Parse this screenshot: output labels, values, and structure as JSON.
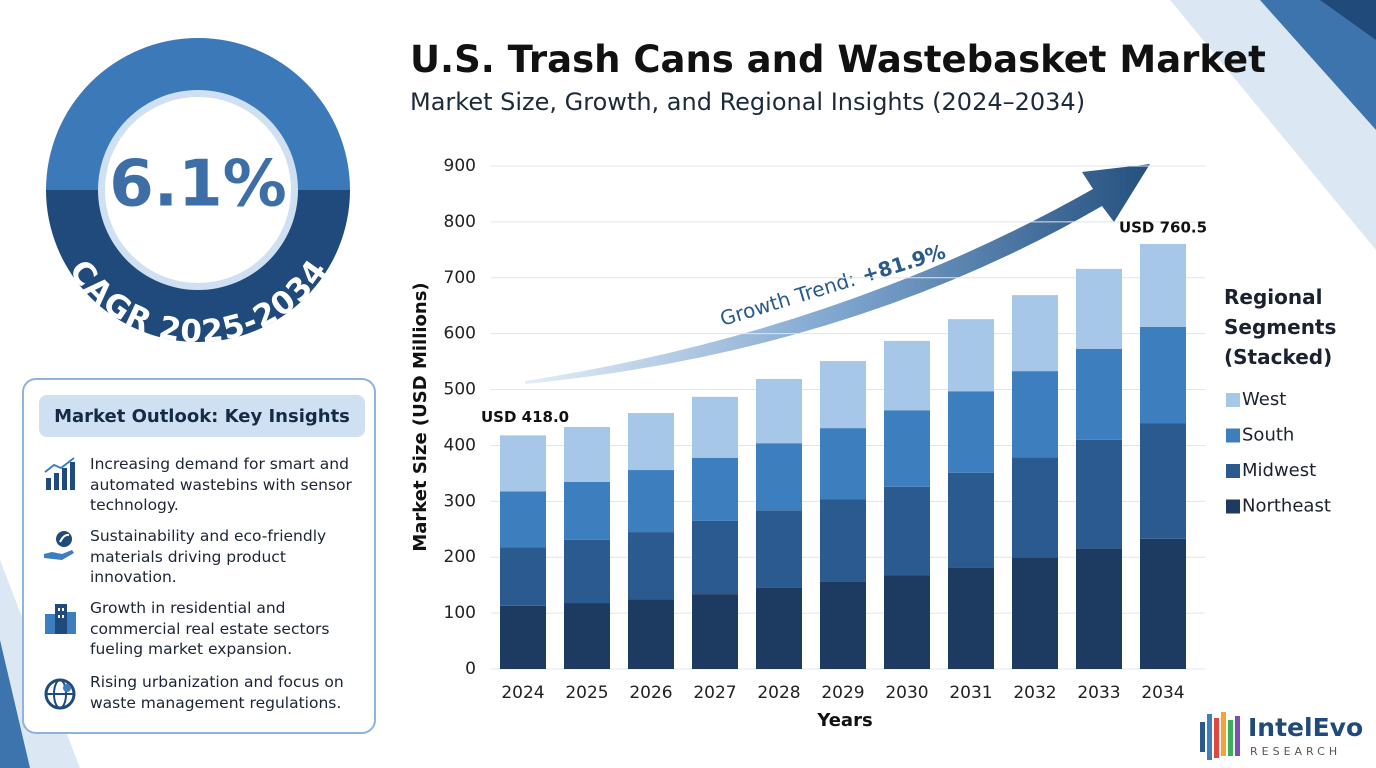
{
  "cagr": {
    "value": "6.1%",
    "label": "CAGR 2025-2034"
  },
  "insights": {
    "title": "Market Outlook: Key Insights",
    "items": [
      "Increasing demand for smart and automated wastebins with sensor technology.",
      "Sustainability and eco-friendly materials driving product innovation.",
      "Growth in residential and commercial real estate sectors fueling market expansion.",
      "Rising urbanization and focus on waste management regulations."
    ]
  },
  "logo": {
    "name": "IntelEvo",
    "tagline": "RESEARCH"
  },
  "chart_data": {
    "type": "bar",
    "stacked": true,
    "title": "U.S. Trash Cans and Wastebasket Market",
    "subtitle": "Market Size, Growth, and Regional Insights (2024–2034)",
    "x_label": "Years",
    "y_label": "Market Size (USD Millions)",
    "categories": [
      "2024",
      "2025",
      "2026",
      "2027",
      "2028",
      "2029",
      "2030",
      "2031",
      "2032",
      "2033",
      "2034"
    ],
    "series": [
      {
        "name": "Northeast",
        "color": "#1d3a60",
        "values": [
          113,
          118,
          125,
          134,
          145,
          157,
          168,
          182,
          200,
          216,
          233
        ]
      },
      {
        "name": "Midwest",
        "color": "#2b5b8e",
        "values": [
          105,
          113,
          120,
          131,
          139,
          147,
          158,
          169,
          179,
          194,
          207
        ]
      },
      {
        "name": "South",
        "color": "#3d7ebf",
        "values": [
          100,
          104,
          111,
          113,
          120,
          127,
          137,
          146,
          154,
          163,
          172
        ]
      },
      {
        "name": "West",
        "color": "#a6c7e7",
        "values": [
          100,
          98,
          102,
          109,
          115,
          120,
          124,
          129,
          136,
          143,
          148.5
        ]
      }
    ],
    "ylim": [
      0,
      900
    ],
    "yticks": [
      0,
      100,
      200,
      300,
      400,
      500,
      600,
      700,
      800,
      900
    ],
    "grid": true,
    "legend_title": "Regional Segments (Stacked)",
    "legend_position": "right",
    "annotations": [
      "USD 418.0",
      "USD 760.5"
    ],
    "trend": {
      "label": "Growth Trend:",
      "value": "+81.9%"
    }
  }
}
